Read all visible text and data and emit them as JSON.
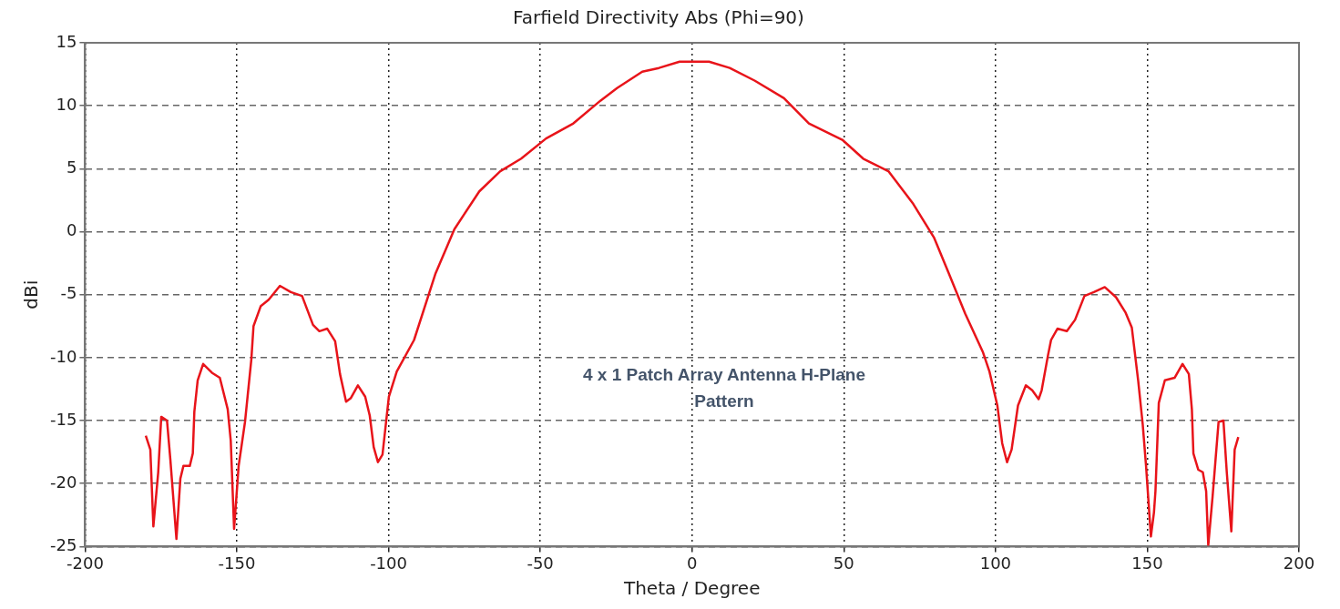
{
  "chart_data": {
    "type": "line",
    "title": "Farfield Directivity Abs (Phi=90)",
    "xlabel": "Theta / Degree",
    "ylabel": "dBi",
    "annotations": [
      "4 x 1 Patch Array Antenna H-Plane Pattern"
    ],
    "xlim": [
      -200,
      200
    ],
    "xticks": [
      -200,
      -150,
      -100,
      -50,
      0,
      50,
      100,
      150,
      200
    ],
    "ylim": [
      -25,
      15
    ],
    "yticks": [
      -25,
      -20,
      -15,
      -10,
      -5,
      0,
      5,
      10,
      15
    ],
    "grid": true,
    "marker": "none",
    "line_style": "solid",
    "series": [
      {
        "color": "#e8141a",
        "x": [
          -180,
          -178.5,
          -177.5,
          -175.9,
          -174.9,
          -173,
          -171.9,
          -169.9,
          -168.6,
          -167.6,
          -165.5,
          -164.5,
          -164,
          -162.9,
          -161.1,
          -158.2,
          -155.6,
          -153,
          -152,
          -150.9,
          -149.4,
          -147.3,
          -145.2,
          -144.5,
          -142.1,
          -139.5,
          -135.8,
          -132.2,
          -128.5,
          -124.9,
          -122.8,
          -120.2,
          -117.6,
          -116,
          -114,
          -112.4,
          -110.1,
          -107.7,
          -106.2,
          -104.9,
          -103.5,
          -102,
          -99.9,
          -97.3,
          -91.6,
          -84.5,
          -78.3,
          -70.1,
          -63.2,
          -56.3,
          -48.1,
          -39.1,
          -30.2,
          -24.7,
          -16.4,
          -10.9,
          -4.1,
          5.6,
          12.4,
          20.6,
          30.3,
          38.5,
          49.5,
          56.4,
          64.7,
          72.9,
          79.8,
          84.6,
          90,
          95.9,
          98,
          100.6,
          102.2,
          103.8,
          105.3,
          107.4,
          110,
          112.1,
          114.2,
          115.2,
          117.3,
          118.3,
          120.4,
          123.5,
          126.2,
          129.3,
          132.4,
          136,
          139.7,
          142.8,
          144.9,
          147,
          148.5,
          149.6,
          151.2,
          152.2,
          152.7,
          153.8,
          155.8,
          159,
          161.6,
          163.7,
          164.7,
          165.2,
          166.8,
          168.3,
          169.4,
          170.1,
          171.5,
          172.5,
          173.5,
          175.1,
          176.2,
          177.7,
          178.8,
          180
        ],
        "values": [
          -16.2,
          -17.3,
          -23.4,
          -19.1,
          -14.7,
          -15,
          -18.1,
          -24.4,
          -19.6,
          -18.6,
          -18.6,
          -17.6,
          -14.3,
          -11.8,
          -10.5,
          -11.2,
          -11.6,
          -14.1,
          -16.6,
          -23.6,
          -18.6,
          -15.1,
          -10.1,
          -7.5,
          -5.9,
          -5.4,
          -4.3,
          -4.8,
          -5.1,
          -7.4,
          -7.9,
          -7.7,
          -8.7,
          -11.3,
          -13.5,
          -13.2,
          -12.2,
          -13.1,
          -14.6,
          -17.1,
          -18.3,
          -17.7,
          -13.1,
          -11.1,
          -8.6,
          -3.3,
          0.2,
          3.2,
          4.8,
          5.8,
          7.4,
          8.6,
          10.4,
          11.4,
          12.7,
          13,
          13.5,
          13.5,
          13,
          12,
          10.6,
          8.6,
          7.3,
          5.8,
          4.8,
          2.2,
          -0.5,
          -3.3,
          -6.5,
          -9.6,
          -11.1,
          -13.8,
          -16.8,
          -18.3,
          -17.3,
          -13.8,
          -12.2,
          -12.6,
          -13.3,
          -12.6,
          -9.8,
          -8.6,
          -7.7,
          -7.9,
          -7,
          -5.1,
          -4.8,
          -4.4,
          -5.2,
          -6.4,
          -7.6,
          -11.8,
          -15.3,
          -18.6,
          -24.2,
          -22.3,
          -20.6,
          -13.6,
          -11.8,
          -11.6,
          -10.5,
          -11.3,
          -14.1,
          -17.6,
          -18.9,
          -19.1,
          -20.6,
          -24.9,
          -21.1,
          -18.1,
          -15.1,
          -15,
          -19.1,
          -23.8,
          -17.3,
          -16.3
        ]
      }
    ]
  }
}
